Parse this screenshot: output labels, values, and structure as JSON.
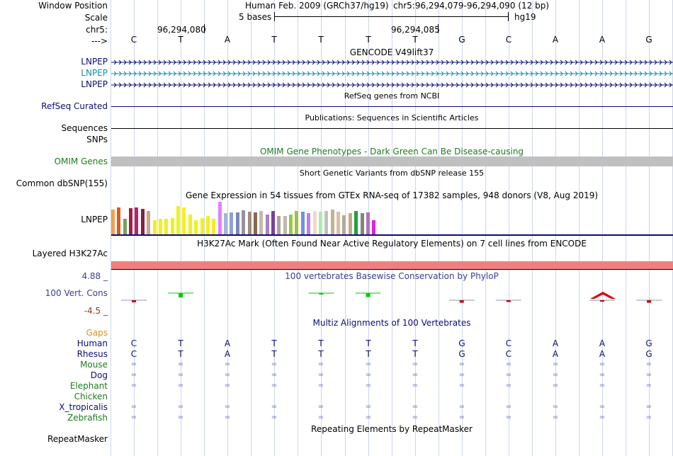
{
  "header": {
    "window_position_label": "Window Position",
    "assembly": "Human Feb. 2009 (GRCh37/hg19)",
    "position": "chr5:96,294,079-96,294,090 (12 bp)",
    "scale_label": "Scale",
    "scale_text": "5 bases",
    "scale_db": "hg19",
    "chrom_label": "chr5:",
    "coord_1": "96,294,080",
    "coord_2": "96,294,085",
    "strand_label": "--->"
  },
  "bases": [
    "C",
    "T",
    "A",
    "T",
    "T",
    "T",
    "T",
    "G",
    "C",
    "A",
    "A",
    "G"
  ],
  "tracks": {
    "gencode": {
      "title": "GENCODE V49lift37",
      "items": [
        "LNPEP",
        "LNPEP",
        "LNPEP"
      ],
      "colors": [
        "#0c0c78",
        "#1a8aa8",
        "#0c0c78"
      ]
    },
    "refseq_title": "RefSeq genes from NCBI",
    "refseq_label": "RefSeq Curated",
    "pubs_title": "Publications: Sequences in Scientific Articles",
    "sequences_label": "Sequences",
    "snps_label": "SNPs",
    "omim_title": "OMIM Gene Phenotypes - Dark Green Can Be Disease-causing",
    "omim_label": "OMIM Genes",
    "dbsnp_title": "Short Genetic Variants from dbSNP release 155",
    "dbsnp_label": "Common dbSNP(155)",
    "gtex_title": "Gene Expression in 54 tissues from GTEx RNA-seq of 17382 samples, 948 donors (V8, Aug 2019)",
    "gtex_label": "LNPEP",
    "h3k27_title": "H3K27Ac Mark (Often Found Near Active Regulatory Elements) on 7 cell lines from ENCODE",
    "h3k27_label": "Layered H3K27Ac",
    "phylop_title": "100 vertebrates Basewise Conservation by PhyloP",
    "phylop_label": "100 Vert. Cons",
    "phylop_max": "4.88 _",
    "phylop_min": "-4.5 _",
    "multiz_title": "Multiz Alignments of 100 Vertebrates",
    "gaps_label": "Gaps",
    "rmsk_title": "Repeating Elements by RepeatMasker",
    "rmsk_label": "RepeatMasker"
  },
  "species": [
    {
      "name": "Human",
      "color": "#0c0c78",
      "row": [
        "C",
        "T",
        "A",
        "T",
        "T",
        "T",
        "T",
        "G",
        "C",
        "A",
        "A",
        "G"
      ]
    },
    {
      "name": "Rhesus",
      "color": "#0c0c78",
      "row": [
        "C",
        "T",
        "A",
        "T",
        "T",
        "T",
        "T",
        "G",
        "C",
        "A",
        "A",
        "G"
      ]
    },
    {
      "name": "Mouse",
      "color": "#1f7a1f",
      "row": [
        "=",
        "=",
        "=",
        "=",
        "=",
        "=",
        "=",
        "=",
        "=",
        "=",
        "=",
        "="
      ]
    },
    {
      "name": "Dog",
      "color": "#0c0c78",
      "row": [
        "=",
        "=",
        "=",
        "=",
        "=",
        "=",
        "=",
        "=",
        "=",
        "=",
        "=",
        "="
      ]
    },
    {
      "name": "Elephant",
      "color": "#1f7a1f",
      "row": [
        "=",
        "=",
        "=",
        "=",
        "=",
        "=",
        "=",
        "=",
        "=",
        "=",
        "=",
        "="
      ]
    },
    {
      "name": "Chicken",
      "color": "#1f7a1f",
      "row": [
        "",
        "",
        "",
        "",
        "",
        "",
        "",
        "",
        "",
        "",
        "",
        ""
      ]
    },
    {
      "name": "X_tropicalis",
      "color": "#0c0c78",
      "row": [
        "=",
        "=",
        "=",
        "=",
        "=",
        "=",
        "=",
        "=",
        "=",
        "=",
        "=",
        "="
      ]
    },
    {
      "name": "Zebrafish",
      "color": "#1f7a1f",
      "row": [
        "=",
        "=",
        "=",
        "=",
        "=",
        "=",
        "=",
        "=",
        "=",
        "=",
        "=",
        "="
      ]
    }
  ],
  "gtex_values": [
    35,
    38,
    22,
    37,
    38,
    36,
    33,
    20,
    22,
    22,
    23,
    40,
    38,
    28,
    20,
    23,
    26,
    22,
    46,
    30,
    31,
    31,
    34,
    32,
    31,
    33,
    28,
    33,
    26,
    26,
    28,
    33,
    32,
    30,
    33,
    32,
    33,
    35,
    32,
    27,
    30,
    33,
    30,
    31,
    20
  ],
  "gtex_colors": [
    "#f5a04c",
    "#d85c1c",
    "#78a060",
    "#a02040",
    "#c02060",
    "#882040",
    "#c8a890",
    "#f0f020",
    "#f0f020",
    "#f0f020",
    "#f0f020",
    "#f0f020",
    "#f0f020",
    "#f0f020",
    "#f0f020",
    "#f0f020",
    "#f0f020",
    "#f0f020",
    "#e080ff",
    "#a0b8d8",
    "#90a0d0",
    "#7888b8",
    "#9890a0",
    "#a08c7c",
    "#886850",
    "#c8b8a8",
    "#a880c8",
    "#7840a0",
    "#b0a0a8",
    "#c0b8a8",
    "#98c848",
    "#a0c040",
    "#7090e0",
    "#c080e0",
    "#f0d8c8",
    "#b0e8b0",
    "#c0c0c0",
    "#c8b090",
    "#d8c0a8",
    "#b8a898",
    "#c8a880",
    "#20a040",
    "#808878",
    "#b070c0",
    "#e020e0"
  ],
  "phylop_values": [
    -0.6,
    1.2,
    0,
    0,
    0.2,
    1.1,
    0,
    -0.7,
    -0.5,
    0,
    -0.3,
    -0.7
  ]
}
